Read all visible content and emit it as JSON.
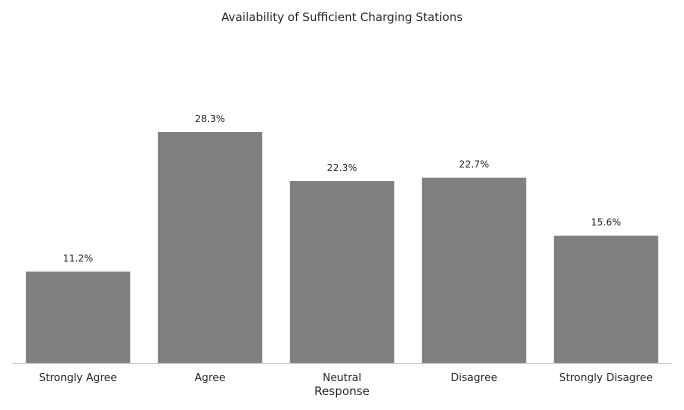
{
  "chart_data": {
    "type": "bar",
    "title": "Availability of Sufficient Charging Stations",
    "xlabel": "Response",
    "ylabel": "",
    "categories": [
      "Strongly Agree",
      "Agree",
      "Neutral",
      "Disagree",
      "Strongly Disagree"
    ],
    "values": [
      11.2,
      28.3,
      22.3,
      22.7,
      15.6
    ],
    "data_labels": [
      "11.2%",
      "28.3%",
      "22.3%",
      "22.7%",
      "15.6%"
    ],
    "ylim": [
      0,
      35
    ],
    "bar_color": "#808080",
    "axis_color": "#cccccc",
    "grid": false,
    "legend": "none"
  }
}
